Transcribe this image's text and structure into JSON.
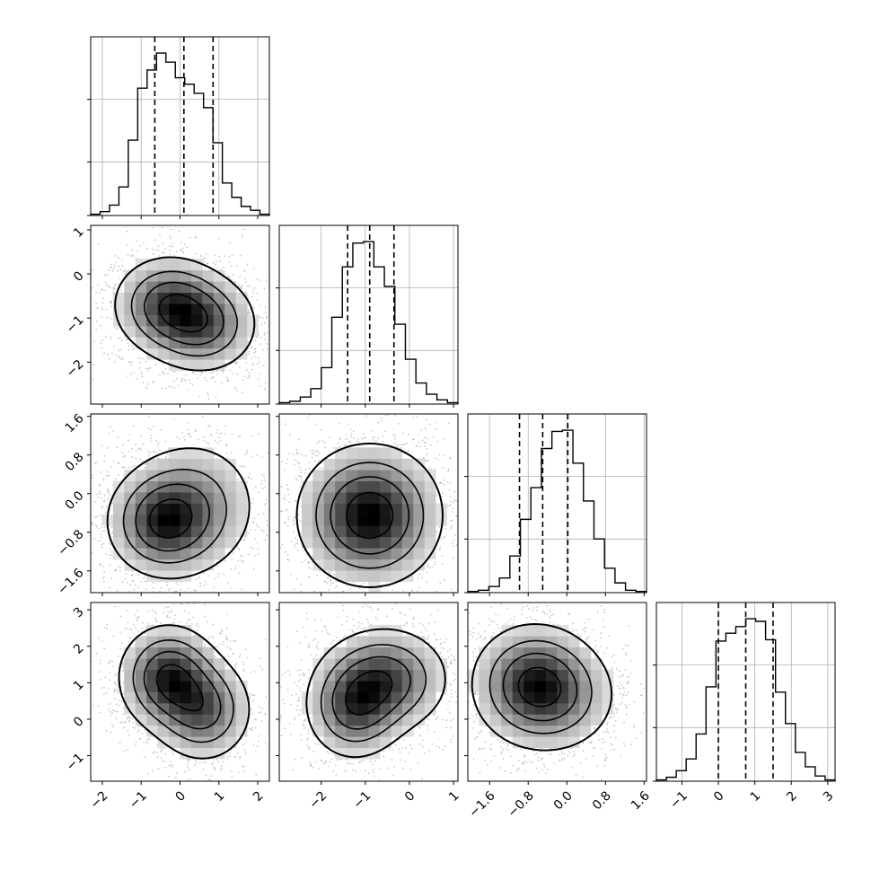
{
  "chart_data": {
    "type": "corner",
    "description_of_panels": "lower-triangular corner plot of 4 parameters: 1D histograms on the diagonal, 2D density contour plots below",
    "grid": true,
    "parameters": [
      {
        "index": 0,
        "range": [
          -2.3,
          2.3
        ],
        "ticks": [
          -2,
          -1,
          0,
          1,
          2
        ],
        "tick_labels": [
          "−2",
          "−1",
          "0",
          "1",
          "2"
        ],
        "quantiles": [
          -0.65,
          0.1,
          0.85
        ]
      },
      {
        "index": 1,
        "range": [
          -2.95,
          1.1
        ],
        "ticks": [
          -2,
          -1,
          0,
          1
        ],
        "tick_labels": [
          "−2",
          "−1",
          "0",
          "1"
        ],
        "quantiles": [
          -1.4,
          -0.9,
          -0.35
        ]
      },
      {
        "index": 2,
        "range": [
          -2.05,
          1.65
        ],
        "ticks": [
          -1.6,
          -0.8,
          0.0,
          0.8,
          1.6
        ],
        "tick_labels": [
          "−1.6",
          "−0.8",
          "0.0",
          "0.8",
          "1.6"
        ],
        "quantiles": [
          -0.98,
          -0.5,
          0.02
        ]
      },
      {
        "index": 3,
        "range": [
          -1.7,
          3.2
        ],
        "ticks": [
          -1,
          0,
          1,
          2,
          3
        ],
        "tick_labels": [
          "−1",
          "0",
          "1",
          "2",
          "3"
        ],
        "quantiles": [
          0.0,
          0.75,
          1.5
        ]
      }
    ],
    "histograms": [
      {
        "param": 0,
        "counts": [
          1,
          3,
          8,
          22,
          58,
          98,
          112,
          125,
          118,
          106,
          101,
          94,
          83,
          56,
          25,
          14,
          7,
          4,
          1
        ]
      },
      {
        "param": 1,
        "counts": [
          1,
          2,
          5,
          11,
          26,
          62,
          98,
          115,
          116,
          98,
          84,
          57,
          32,
          15,
          7,
          3,
          1
        ]
      },
      {
        "param": 2,
        "counts": [
          1,
          2,
          5,
          12,
          30,
          60,
          86,
          118,
          132,
          133,
          106,
          75,
          44,
          20,
          8,
          2,
          1
        ]
      },
      {
        "param": 3,
        "counts": [
          1,
          3,
          8,
          17,
          36,
          72,
          107,
          113,
          118,
          124,
          122,
          108,
          68,
          44,
          22,
          11,
          4,
          1
        ]
      }
    ],
    "density_panels": [
      {
        "x_param": 0,
        "y_param": 1,
        "modes": [
          {
            "x": -0.3,
            "y": -0.7,
            "sx": 0.45,
            "sy": 0.35,
            "w": 1.0
          },
          {
            "x": 0.6,
            "y": -1.15,
            "sx": 0.45,
            "sy": 0.35,
            "w": 0.85
          }
        ]
      },
      {
        "x_param": 0,
        "y_param": 2,
        "modes": [
          {
            "x": -0.45,
            "y": -0.6,
            "sx": 0.45,
            "sy": 0.35,
            "w": 1.0
          },
          {
            "x": 0.35,
            "y": -0.25,
            "sx": 0.55,
            "sy": 0.45,
            "w": 0.6
          }
        ]
      },
      {
        "x_param": 1,
        "y_param": 2,
        "modes": [
          {
            "x": -0.9,
            "y": -0.45,
            "sx": 0.5,
            "sy": 0.45,
            "w": 1.0
          }
        ]
      },
      {
        "x_param": 0,
        "y_param": 3,
        "modes": [
          {
            "x": -0.3,
            "y": 1.15,
            "sx": 0.4,
            "sy": 0.45,
            "w": 1.0
          },
          {
            "x": 0.6,
            "y": 0.25,
            "sx": 0.4,
            "sy": 0.45,
            "w": 0.75
          }
        ]
      },
      {
        "x_param": 1,
        "y_param": 3,
        "modes": [
          {
            "x": -1.25,
            "y": 0.3,
            "sx": 0.35,
            "sy": 0.45,
            "w": 0.9
          },
          {
            "x": -0.55,
            "y": 1.1,
            "sx": 0.45,
            "sy": 0.45,
            "w": 1.0
          }
        ]
      },
      {
        "x_param": 2,
        "y_param": 3,
        "modes": [
          {
            "x": -0.7,
            "y": 1.1,
            "sx": 0.4,
            "sy": 0.5,
            "w": 1.0
          },
          {
            "x": -0.35,
            "y": 0.6,
            "sx": 0.45,
            "sy": 0.5,
            "w": 0.8
          }
        ]
      }
    ]
  }
}
